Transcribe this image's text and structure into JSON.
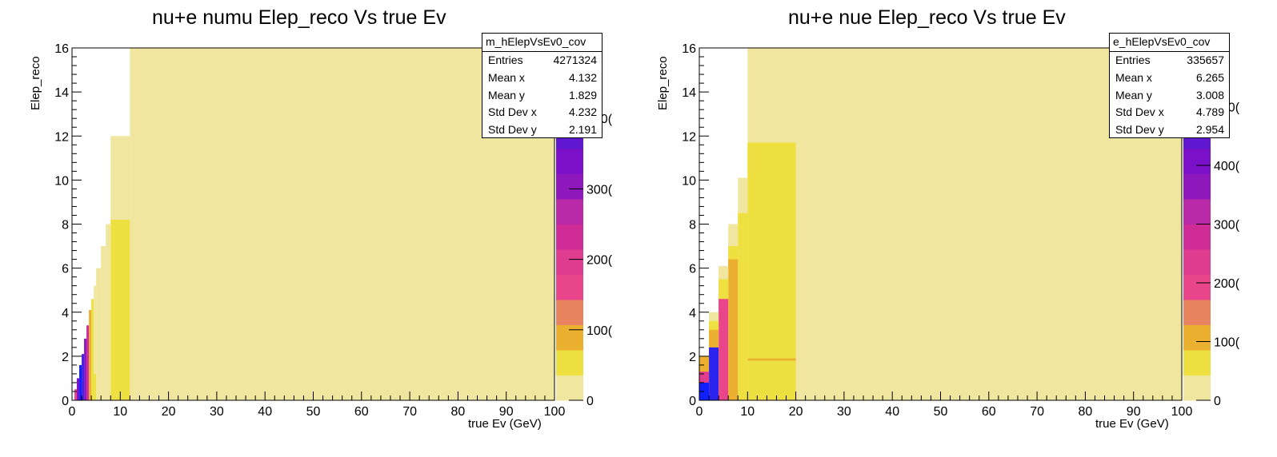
{
  "charts": [
    {
      "title": "nu+e numu Elep_reco Vs true Ev",
      "xlabel": "true Ev (GeV)",
      "ylabel": "Elep_reco",
      "stats": {
        "name": "m_hElepVsEv0_cov",
        "rows": [
          {
            "label": "Entries",
            "value": "4271324"
          },
          {
            "label": "Mean x",
            "value": "4.132"
          },
          {
            "label": "Mean y",
            "value": "1.829"
          },
          {
            "label": "Std Dev x",
            "value": "4.232"
          },
          {
            "label": "Std Dev y",
            "value": "2.191"
          }
        ]
      },
      "palette_labels": [
        "0",
        "100(",
        "200(",
        "300(",
        "400(",
        "00"
      ]
    },
    {
      "title": "nu+e nue Elep_reco Vs true Ev",
      "xlabel": "true Ev (GeV)",
      "ylabel": "Elep_reco",
      "stats": {
        "name": "e_hElepVsEv0_cov",
        "rows": [
          {
            "label": "Entries",
            "value": "335657"
          },
          {
            "label": "Mean x",
            "value": "6.265"
          },
          {
            "label": "Mean y",
            "value": "3.008"
          },
          {
            "label": "Std Dev x",
            "value": "4.789"
          },
          {
            "label": "Std Dev y",
            "value": "2.954"
          }
        ]
      },
      "palette_labels": [
        "0",
        "100(",
        "200(",
        "300(",
        "400(",
        "500(",
        "00"
      ]
    }
  ],
  "chart_data": [
    {
      "type": "heatmap",
      "title": "nu+e numu Elep_reco Vs true Ev",
      "xlabel": "true Ev (GeV)",
      "ylabel": "Elep_reco",
      "xlim": [
        0,
        100
      ],
      "ylim": [
        0,
        16
      ],
      "x_ticks": [
        0,
        10,
        20,
        30,
        40,
        50,
        60,
        70,
        80,
        90,
        100
      ],
      "y_ticks": [
        0,
        2,
        4,
        6,
        8,
        10,
        12,
        14,
        16
      ],
      "z_ticks": [
        0,
        1000,
        2000,
        3000,
        4000
      ],
      "z_max": 5000,
      "palette": [
        "#f0e6a0",
        "#ede040",
        "#ebb030",
        "#e88560",
        "#e8458a",
        "#e03c90",
        "#d02c98",
        "#b82aa8",
        "#8f18bd",
        "#7a10c8",
        "#6018d0",
        "#4224e0",
        "#2a24ee",
        "#1020ff"
      ],
      "cells": [
        {
          "x0": 12,
          "x1": 100,
          "y0": 0,
          "y1": 16,
          "z": 20
        },
        {
          "x0": 8,
          "x1": 12,
          "y0": 8.2,
          "y1": 12,
          "z": 20
        },
        {
          "x0": 8,
          "x1": 12,
          "y0": 0,
          "y1": 8.2,
          "z": 500
        },
        {
          "x0": 7,
          "x1": 8,
          "y0": 0,
          "y1": 8,
          "z": 20
        },
        {
          "x0": 6,
          "x1": 7,
          "y0": 0,
          "y1": 7,
          "z": 20
        },
        {
          "x0": 5,
          "x1": 6,
          "y0": 0,
          "y1": 6,
          "z": 20
        },
        {
          "x0": 4.5,
          "x1": 5,
          "y0": 1.2,
          "y1": 5.2,
          "z": 20
        },
        {
          "x0": 4.5,
          "x1": 5,
          "y0": 0,
          "y1": 1.2,
          "z": 450
        },
        {
          "x0": 4,
          "x1": 4.5,
          "y0": 0,
          "y1": 4.6,
          "z": 480
        },
        {
          "x0": 3.5,
          "x1": 4,
          "y0": 0,
          "y1": 4.1,
          "z": 900
        },
        {
          "x0": 3,
          "x1": 3.5,
          "y0": 0,
          "y1": 3.4,
          "z": 2300
        },
        {
          "x0": 2.5,
          "x1": 3,
          "y0": 0,
          "y1": 2.8,
          "z": 3000
        },
        {
          "x0": 2,
          "x1": 2.5,
          "y0": 0,
          "y1": 2.1,
          "z": 4200
        },
        {
          "x0": 1.5,
          "x1": 2,
          "y0": 0,
          "y1": 1.6,
          "z": 4800
        },
        {
          "x0": 1,
          "x1": 1.5,
          "y0": 0,
          "y1": 1.0,
          "z": 3500
        },
        {
          "x0": 0.5,
          "x1": 1,
          "y0": 0,
          "y1": 0.5,
          "z": 1500
        }
      ],
      "stats": {
        "name": "m_hElepVsEv0_cov",
        "entries": 4271324,
        "mean_x": 4.132,
        "mean_y": 1.829,
        "std_dev_x": 4.232,
        "std_dev_y": 2.191
      }
    },
    {
      "type": "heatmap",
      "title": "nu+e nue Elep_reco Vs true Ev",
      "xlabel": "true Ev (GeV)",
      "ylabel": "Elep_reco",
      "xlim": [
        0,
        100
      ],
      "ylim": [
        0,
        16
      ],
      "x_ticks": [
        0,
        10,
        20,
        30,
        40,
        50,
        60,
        70,
        80,
        90,
        100
      ],
      "y_ticks": [
        0,
        2,
        4,
        6,
        8,
        10,
        12,
        14,
        16
      ],
      "z_ticks": [
        0,
        1000,
        2000,
        3000,
        4000,
        5000
      ],
      "z_max": 6000,
      "palette": [
        "#f0e6a0",
        "#ede040",
        "#ebb030",
        "#e88560",
        "#e8458a",
        "#e03c90",
        "#d02c98",
        "#b82aa8",
        "#8f18bd",
        "#7a10c8",
        "#6018d0",
        "#4224e0",
        "#2a24ee",
        "#1020ff"
      ],
      "cells": [
        {
          "x0": 10,
          "x1": 100,
          "y0": 0,
          "y1": 16,
          "z": 20
        },
        {
          "x0": 10,
          "x1": 20,
          "y0": 0,
          "y1": 11.7,
          "z": 550
        },
        {
          "x0": 10,
          "x1": 20,
          "y0": 1.8,
          "y1": 1.9,
          "z": 1000
        },
        {
          "x0": 8,
          "x1": 10,
          "y0": 0,
          "y1": 10.1,
          "z": 20
        },
        {
          "x0": 8,
          "x1": 10,
          "y0": 0,
          "y1": 8.5,
          "z": 550
        },
        {
          "x0": 6,
          "x1": 8,
          "y0": 0,
          "y1": 8,
          "z": 20
        },
        {
          "x0": 6,
          "x1": 8,
          "y0": 0,
          "y1": 7,
          "z": 550
        },
        {
          "x0": 6,
          "x1": 8,
          "y0": 0,
          "y1": 6.4,
          "z": 1000
        },
        {
          "x0": 4,
          "x1": 6,
          "y0": 0,
          "y1": 6.1,
          "z": 20
        },
        {
          "x0": 4,
          "x1": 6,
          "y0": 0,
          "y1": 5.5,
          "z": 550
        },
        {
          "x0": 4,
          "x1": 6,
          "y0": 0,
          "y1": 4.6,
          "z": 2000
        },
        {
          "x0": 2,
          "x1": 4,
          "y0": 0,
          "y1": 4.0,
          "z": 20
        },
        {
          "x0": 2,
          "x1": 4,
          "y0": 0,
          "y1": 3.6,
          "z": 550
        },
        {
          "x0": 2,
          "x1": 4,
          "y0": 0,
          "y1": 3.2,
          "z": 1000
        },
        {
          "x0": 2,
          "x1": 4,
          "y0": 0,
          "y1": 2.4,
          "z": 5400
        },
        {
          "x0": 0,
          "x1": 2,
          "y0": 0,
          "y1": 2.0,
          "z": 1000
        },
        {
          "x0": 0,
          "x1": 2,
          "y0": 0,
          "y1": 1.3,
          "z": 2500
        },
        {
          "x0": 0,
          "x1": 2,
          "y0": 0,
          "y1": 0.8,
          "z": 5800
        }
      ],
      "stats": {
        "name": "e_hElepVsEv0_cov",
        "entries": 335657,
        "mean_x": 6.265,
        "mean_y": 3.008,
        "std_dev_x": 4.789,
        "std_dev_y": 2.954
      }
    }
  ]
}
